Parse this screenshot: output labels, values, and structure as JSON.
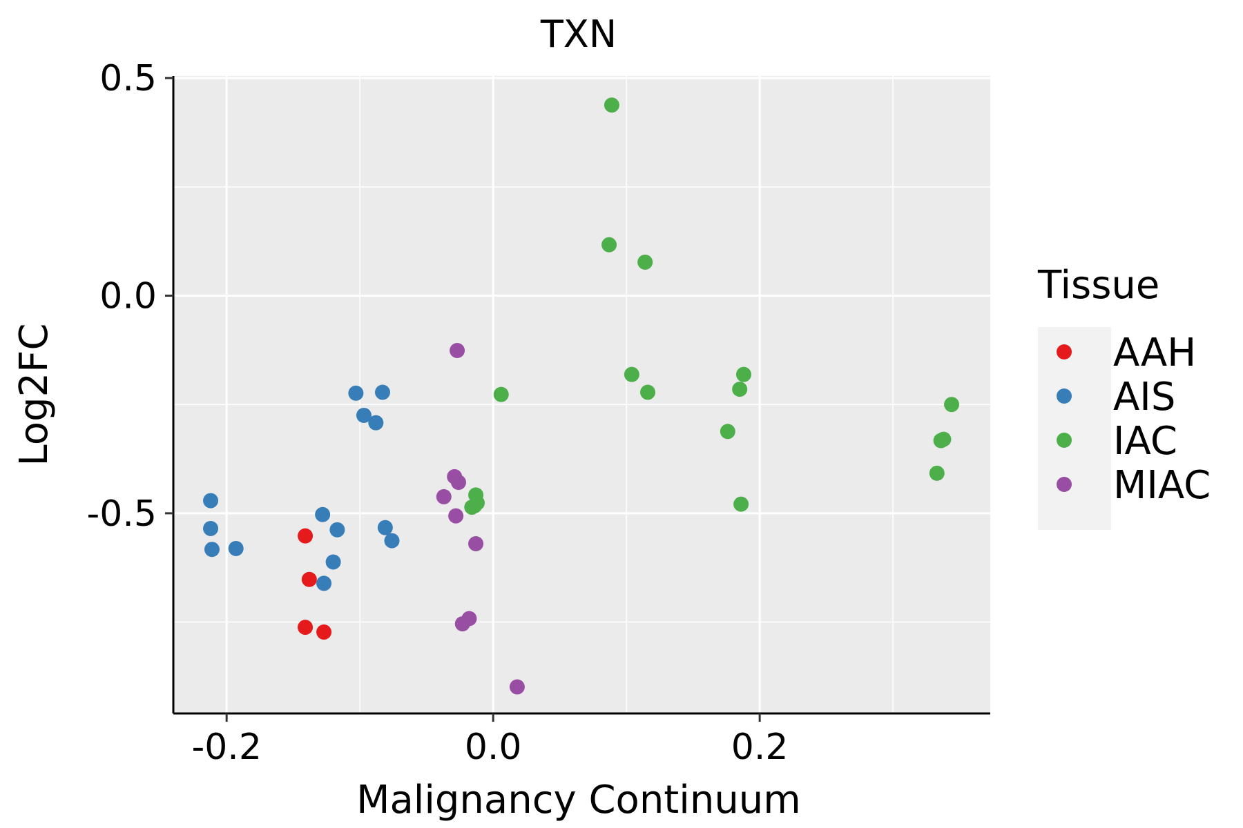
{
  "chart_data": {
    "type": "scatter",
    "title": "TXN",
    "xlabel": "Malignancy Continuum",
    "ylabel": "Log2FC",
    "xlim": [
      -0.24,
      0.373
    ],
    "ylim": [
      -0.96,
      0.505
    ],
    "xticks": [
      -0.2,
      0.0,
      0.2
    ],
    "xtick_labels": [
      "-0.2",
      "0.0",
      "0.2"
    ],
    "yticks": [
      -0.5,
      0.0,
      0.5
    ],
    "ytick_labels": [
      "-0.5",
      "0.0",
      "0.5"
    ],
    "grid": true,
    "legend": {
      "title": "Tissue",
      "position": "right"
    },
    "series": [
      {
        "name": "AAH",
        "color": "#E41A1C",
        "points": [
          {
            "x": -0.141,
            "y": -0.552
          },
          {
            "x": -0.138,
            "y": -0.652
          },
          {
            "x": -0.141,
            "y": -0.762
          },
          {
            "x": -0.127,
            "y": -0.773
          }
        ]
      },
      {
        "name": "AIS",
        "color": "#377EB8",
        "points": [
          {
            "x": -0.212,
            "y": -0.471
          },
          {
            "x": -0.212,
            "y": -0.535
          },
          {
            "x": -0.211,
            "y": -0.583
          },
          {
            "x": -0.193,
            "y": -0.581
          },
          {
            "x": -0.128,
            "y": -0.503
          },
          {
            "x": -0.117,
            "y": -0.538
          },
          {
            "x": -0.12,
            "y": -0.612
          },
          {
            "x": -0.127,
            "y": -0.661
          },
          {
            "x": -0.103,
            "y": -0.224
          },
          {
            "x": -0.083,
            "y": -0.222
          },
          {
            "x": -0.097,
            "y": -0.275
          },
          {
            "x": -0.088,
            "y": -0.292
          },
          {
            "x": -0.081,
            "y": -0.533
          },
          {
            "x": -0.076,
            "y": -0.563
          }
        ]
      },
      {
        "name": "IAC",
        "color": "#4DAF4A",
        "points": [
          {
            "x": 0.089,
            "y": 0.438
          },
          {
            "x": 0.087,
            "y": 0.117
          },
          {
            "x": 0.114,
            "y": 0.077
          },
          {
            "x": 0.104,
            "y": -0.181
          },
          {
            "x": 0.116,
            "y": -0.222
          },
          {
            "x": 0.006,
            "y": -0.227
          },
          {
            "x": 0.188,
            "y": -0.181
          },
          {
            "x": 0.185,
            "y": -0.215
          },
          {
            "x": 0.176,
            "y": -0.312
          },
          {
            "x": 0.186,
            "y": -0.479
          },
          {
            "x": 0.344,
            "y": -0.25
          },
          {
            "x": 0.338,
            "y": -0.33
          },
          {
            "x": 0.336,
            "y": -0.333
          },
          {
            "x": 0.333,
            "y": -0.408
          },
          {
            "x": -0.013,
            "y": -0.458
          },
          {
            "x": -0.012,
            "y": -0.476
          },
          {
            "x": -0.016,
            "y": -0.486
          },
          {
            "x": -0.014,
            "y": -0.483
          }
        ]
      },
      {
        "name": "MIAC",
        "color": "#984EA3",
        "points": [
          {
            "x": -0.027,
            "y": -0.126
          },
          {
            "x": -0.029,
            "y": -0.416
          },
          {
            "x": -0.026,
            "y": -0.429
          },
          {
            "x": -0.037,
            "y": -0.462
          },
          {
            "x": -0.028,
            "y": -0.506
          },
          {
            "x": -0.013,
            "y": -0.57
          },
          {
            "x": -0.018,
            "y": -0.742
          },
          {
            "x": -0.023,
            "y": -0.754
          },
          {
            "x": 0.018,
            "y": -0.899
          }
        ]
      }
    ]
  }
}
